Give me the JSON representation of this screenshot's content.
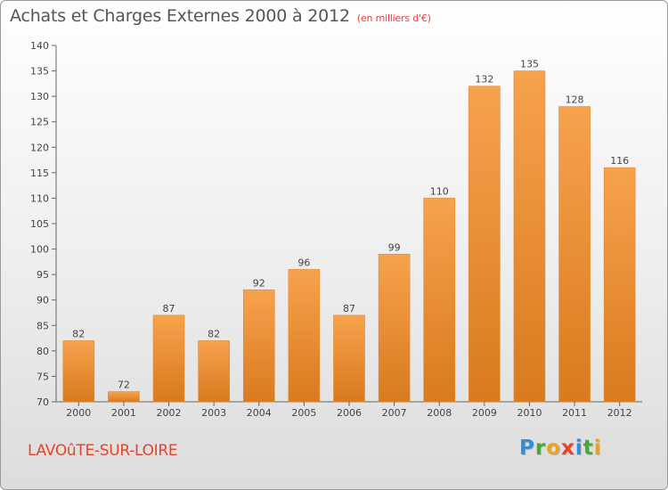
{
  "title": "Achats et Charges Externes 2000 à 2012",
  "subtitle": "(en milliers d'€)",
  "location": "LAVOûTE-SUR-LOIRE",
  "logo": [
    "P",
    "r",
    "o",
    "x",
    "i",
    "t",
    "i"
  ],
  "logo_colors": [
    "#2f8fd8",
    "#4aa83a",
    "#f0a21a",
    "#e8422b",
    "#2f8fd8",
    "#4aa83a",
    "#f0a21a"
  ],
  "colors": {
    "bar_top": "#f7a24d",
    "bar_bottom": "#d97a1e",
    "bar_stroke": "#e08a30"
  },
  "chart_data": {
    "type": "bar",
    "categories": [
      "2000",
      "2001",
      "2002",
      "2003",
      "2004",
      "2005",
      "2006",
      "2007",
      "2008",
      "2009",
      "2010",
      "2011",
      "2012"
    ],
    "values": [
      82,
      72,
      87,
      82,
      92,
      96,
      87,
      99,
      110,
      132,
      135,
      128,
      116
    ],
    "data_labels": [
      "82",
      "72",
      "87",
      "82",
      "92",
      "96",
      "87",
      "99",
      "110",
      "132",
      "135",
      "128",
      "116"
    ],
    "ylim": [
      70,
      140
    ],
    "yticks": [
      70,
      75,
      80,
      85,
      90,
      95,
      100,
      105,
      110,
      115,
      120,
      125,
      130,
      135,
      140
    ],
    "ytick_labels": [
      "70",
      "75",
      "80",
      "85",
      "90",
      "95",
      "100",
      "105",
      "110",
      "115",
      "120",
      "125",
      "130",
      "135",
      "140"
    ],
    "xlabel": "",
    "ylabel": "",
    "grid": false,
    "legend": "none"
  }
}
